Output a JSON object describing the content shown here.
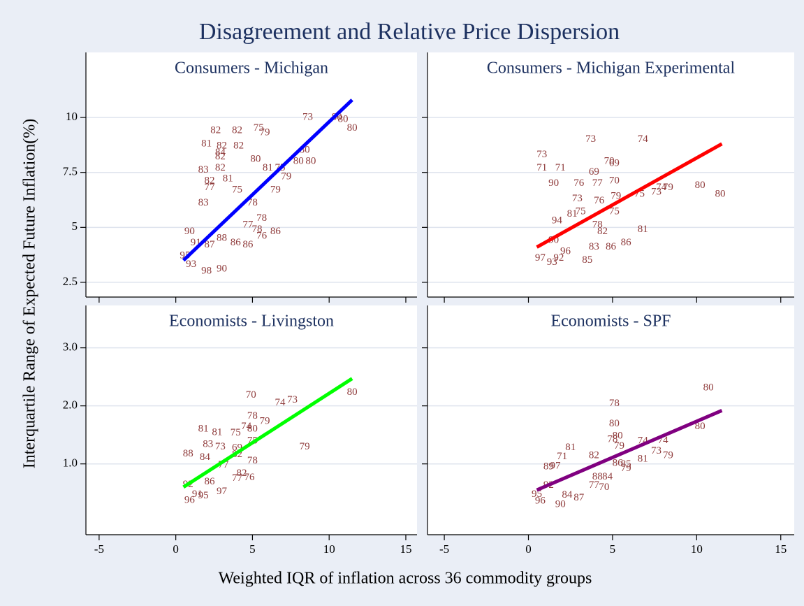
{
  "title": "Disagreement and Relative Price Dispersion",
  "x_label": "Weighted IQR of inflation across 36 commodity groups",
  "y_label": "Interquartile Range of Expected Future Inflation(%)",
  "grid": true,
  "label_color": "#8f3b3b",
  "chart_data": [
    {
      "type": "scatter",
      "subtitle": "Consumers - Michigan",
      "x": [
        8.6,
        10.5,
        10.9,
        11.5,
        5.4,
        5.8,
        2.6,
        4.0,
        2.0,
        3.0,
        4.1,
        2.9,
        2.9,
        5.2,
        8.4,
        8.8,
        8.0,
        6.0,
        6.8,
        7.2,
        1.8,
        2.9,
        3.4,
        2.2,
        2.2,
        6.5,
        4.0,
        1.8,
        5.0,
        5.6,
        4.7,
        5.3,
        6.5,
        5.6,
        4.7,
        0.9,
        1.3,
        0.6,
        2.0,
        3.0,
        1.0,
        2.2,
        3.0,
        3.9
      ],
      "values": [
        10.0,
        10.0,
        9.9,
        9.5,
        9.5,
        9.3,
        9.4,
        9.4,
        8.8,
        8.7,
        8.7,
        8.4,
        8.2,
        8.1,
        8.5,
        8.0,
        8.0,
        7.7,
        7.7,
        7.3,
        7.6,
        7.7,
        7.2,
        7.1,
        6.8,
        6.7,
        6.7,
        6.1,
        6.1,
        5.4,
        5.1,
        4.9,
        4.8,
        4.6,
        4.2,
        4.8,
        4.3,
        3.7,
        3.0,
        3.1,
        3.3,
        4.2,
        4.5,
        4.3
      ],
      "labels": [
        "73",
        "80",
        "80",
        "80",
        "75",
        "79",
        "82",
        "82",
        "81",
        "82",
        "82",
        "84",
        "82",
        "80",
        "80",
        "80",
        "80",
        "81",
        "75",
        "79",
        "83",
        "82",
        "81",
        "82",
        "77",
        "79",
        "75",
        "83",
        "78",
        "78",
        "77",
        "78",
        "86",
        "76",
        "86",
        "90",
        "91",
        "95",
        "98",
        "90",
        "93",
        "87",
        "88",
        "86"
      ],
      "ylim": [
        1.83,
        12.96
      ],
      "yticks": [
        2.5,
        5,
        7.5,
        10
      ],
      "fit": {
        "color": "#0000ff",
        "x": [
          0.5,
          11.5
        ],
        "values": [
          3.5,
          10.8
        ]
      }
    },
    {
      "type": "scatter",
      "subtitle": "Consumers - Michigan Experimental",
      "x": [
        3.7,
        6.8,
        0.8,
        0.8,
        1.9,
        3.9,
        4.8,
        5.1,
        1.5,
        3.0,
        4.1,
        5.1,
        5.2,
        7.9,
        8.3,
        10.2,
        11.4,
        7.6,
        6.6,
        2.9,
        4.2,
        5.1,
        3.1,
        2.6,
        4.1,
        4.4,
        1.7,
        6.8,
        5.8,
        4.9,
        3.9,
        1.5,
        0.7,
        1.8,
        3.5,
        1.4,
        2.2
      ],
      "values": [
        9.0,
        9.0,
        8.3,
        7.7,
        7.7,
        7.5,
        8.0,
        7.9,
        7.0,
        7.0,
        7.0,
        7.1,
        6.4,
        6.8,
        6.8,
        6.9,
        6.5,
        6.6,
        6.5,
        6.3,
        6.2,
        5.7,
        5.7,
        5.6,
        5.1,
        4.8,
        5.3,
        4.9,
        4.3,
        4.1,
        4.1,
        4.4,
        3.6,
        3.6,
        3.5,
        3.4,
        3.9
      ],
      "labels": [
        "73",
        "74",
        "73",
        "71",
        "71",
        "69",
        "70",
        "69",
        "90",
        "76",
        "77",
        "70",
        "79",
        "74",
        "79",
        "80",
        "80",
        "73",
        "75",
        "73",
        "76",
        "75",
        "75",
        "81",
        "78",
        "82",
        "94",
        "81",
        "86",
        "86",
        "83",
        "90",
        "97",
        "92",
        "85",
        "93",
        "96"
      ],
      "fit": {
        "color": "#ff0000",
        "x": [
          0.5,
          11.5
        ],
        "values": [
          4.1,
          8.8
        ]
      }
    },
    {
      "type": "scatter",
      "subtitle": "Economists - Livingston",
      "x": [
        4.9,
        6.8,
        7.6,
        11.5,
        1.8,
        2.7,
        3.9,
        4.6,
        5.0,
        5.8,
        5.0,
        8.4,
        2.1,
        2.9,
        4.0,
        5.0,
        4.0,
        5.0,
        0.8,
        1.9,
        3.1,
        4.3,
        4.8,
        4.0,
        0.8,
        3.0,
        1.8,
        0.9,
        1.4,
        2.2
      ],
      "values": [
        2.18,
        2.05,
        2.1,
        2.23,
        1.6,
        1.54,
        1.53,
        1.64,
        1.82,
        1.73,
        1.6,
        1.29,
        1.33,
        1.29,
        1.27,
        1.39,
        1.16,
        1.05,
        1.17,
        1.11,
        0.98,
        0.83,
        0.76,
        0.75,
        0.64,
        0.52,
        0.45,
        0.37,
        0.47,
        0.69
      ],
      "labels": [
        "70",
        "74",
        "73",
        "80",
        "81",
        "81",
        "75",
        "74",
        "78",
        "79",
        "80",
        "79",
        "83",
        "73",
        "69",
        "75",
        "82",
        "78",
        "88",
        "84",
        "77",
        "82",
        "76",
        "77",
        "92",
        "97",
        "95",
        "96",
        "91",
        "86"
      ],
      "xlim": [
        -5.86,
        15.73
      ],
      "xticks": [
        -5,
        0,
        5,
        10,
        15
      ],
      "ylim": [
        -0.22,
        3.73
      ],
      "yticks": [
        {
          "value": 1,
          "label": "1.0"
        },
        {
          "value": 2,
          "label": "2.0"
        },
        {
          "value": 3,
          "label": "3.0"
        }
      ],
      "fit": {
        "color": "#00ff00",
        "x": [
          0.5,
          11.5
        ],
        "values": [
          0.6,
          2.47
        ]
      }
    },
    {
      "type": "scatter",
      "subtitle": "Economists - SPF",
      "x": [
        10.7,
        5.1,
        5.1,
        5.0,
        5.3,
        5.4,
        6.8,
        8.0,
        7.6,
        8.3,
        6.8,
        10.2,
        2.5,
        2.0,
        3.9,
        5.8,
        5.8,
        4.7,
        4.5,
        3.9,
        3.0,
        2.3,
        0.7,
        1.9,
        1.2,
        1.2,
        1.6,
        4.1,
        5.3,
        0.5
      ],
      "values": [
        2.31,
        2.04,
        1.69,
        1.42,
        1.48,
        1.3,
        1.39,
        1.4,
        1.22,
        1.14,
        1.08,
        1.64,
        1.28,
        1.12,
        1.14,
        0.99,
        0.92,
        0.77,
        0.59,
        0.63,
        0.41,
        0.46,
        0.36,
        0.3,
        0.63,
        0.95,
        0.96,
        0.77,
        1.01,
        0.47
      ],
      "labels": [
        "80",
        "78",
        "80",
        "78",
        "80",
        "79",
        "74",
        "74",
        "73",
        "79",
        "81",
        "80",
        "81",
        "71",
        "82",
        "85",
        "79",
        "84",
        "70",
        "77",
        "87",
        "84",
        "96",
        "90",
        "92",
        "89",
        "97",
        "88",
        "86",
        "95"
      ],
      "xlim": [
        -6.0,
        15.8
      ],
      "xticks": [
        -5,
        0,
        5,
        10,
        15
      ],
      "fit": {
        "color": "#800080",
        "x": [
          0.5,
          11.5
        ],
        "values": [
          0.55,
          1.92
        ]
      }
    }
  ]
}
